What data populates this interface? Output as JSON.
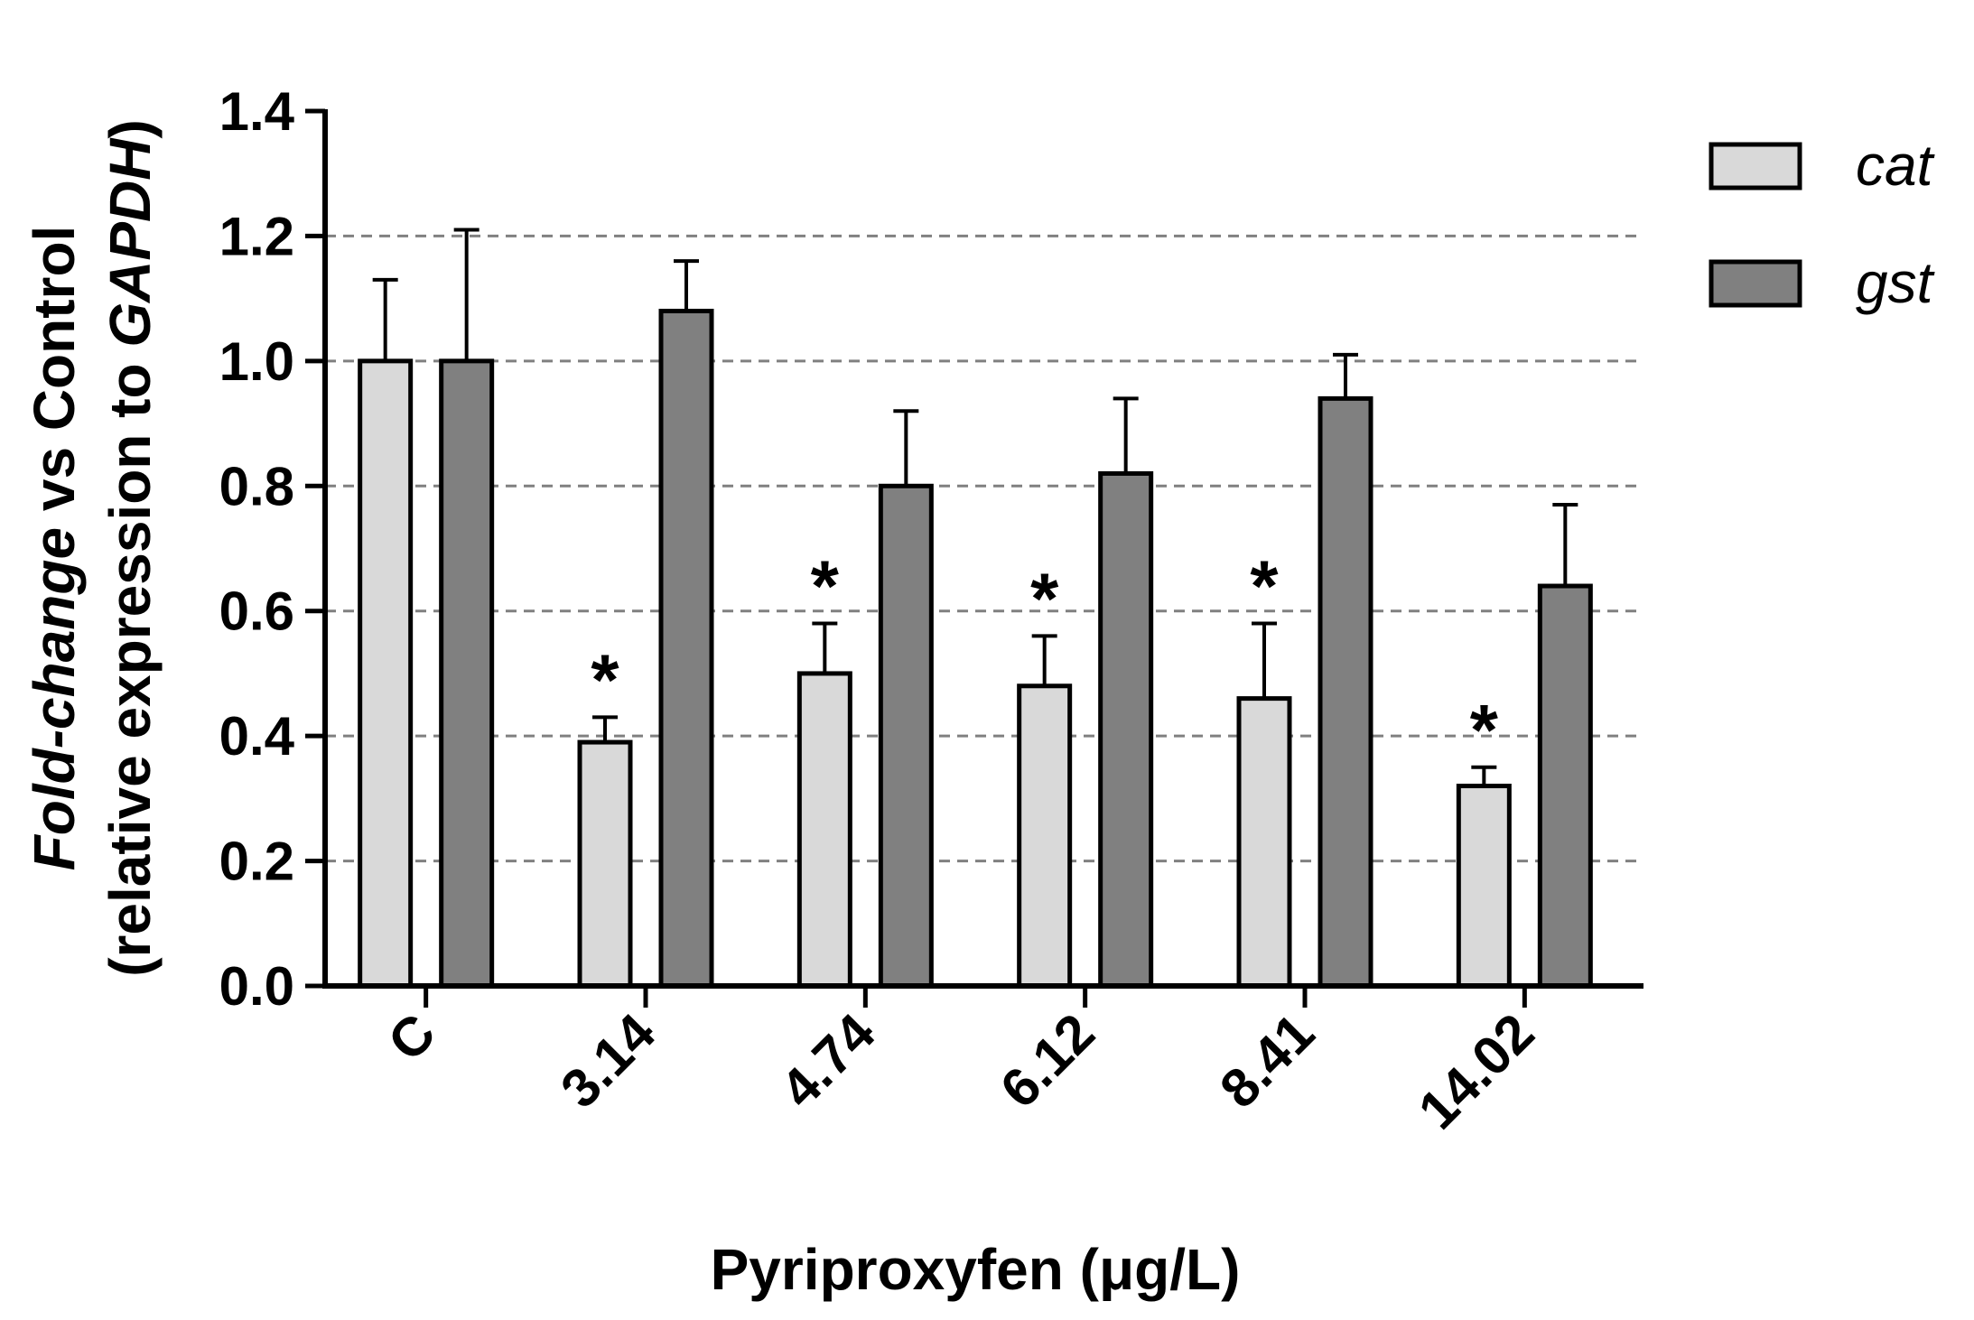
{
  "chart_data": {
    "type": "bar",
    "categories": [
      "C",
      "3.14",
      "4.74",
      "6.12",
      "8.41",
      "14.02"
    ],
    "series": [
      {
        "name": "cat",
        "values": [
          1.0,
          0.39,
          0.5,
          0.48,
          0.46,
          0.32
        ],
        "errors": [
          0.13,
          0.04,
          0.08,
          0.08,
          0.12,
          0.03
        ],
        "significant": [
          false,
          true,
          true,
          true,
          true,
          true
        ],
        "color": "#d9d9d9"
      },
      {
        "name": "gst",
        "values": [
          1.0,
          1.08,
          0.8,
          0.82,
          0.94,
          0.64
        ],
        "errors": [
          0.21,
          0.08,
          0.12,
          0.12,
          0.07,
          0.13
        ],
        "significant": [
          false,
          false,
          false,
          false,
          false,
          false
        ],
        "color": "#808080"
      }
    ],
    "significance_marker": "*",
    "xlabel": "Pyriproxyfen (μg/L)",
    "ylabel_parts": [
      [
        {
          "text": "Fold-change",
          "italic": true
        },
        {
          "text": " vs Control",
          "italic": false
        }
      ],
      [
        {
          "text": "(relative expression to ",
          "italic": false
        },
        {
          "text": "GAPDH",
          "italic": true
        },
        {
          "text": ")",
          "italic": false
        }
      ]
    ],
    "ylim": [
      0,
      1.4
    ],
    "yticks": [
      "0.0",
      "0.2",
      "0.4",
      "0.6",
      "0.8",
      "1.0",
      "1.2",
      "1.4"
    ],
    "gridlines": [
      0.2,
      0.4,
      0.6,
      0.8,
      1.0,
      1.2
    ],
    "grid": "dashed horizontal",
    "legend_position": "top-right"
  }
}
